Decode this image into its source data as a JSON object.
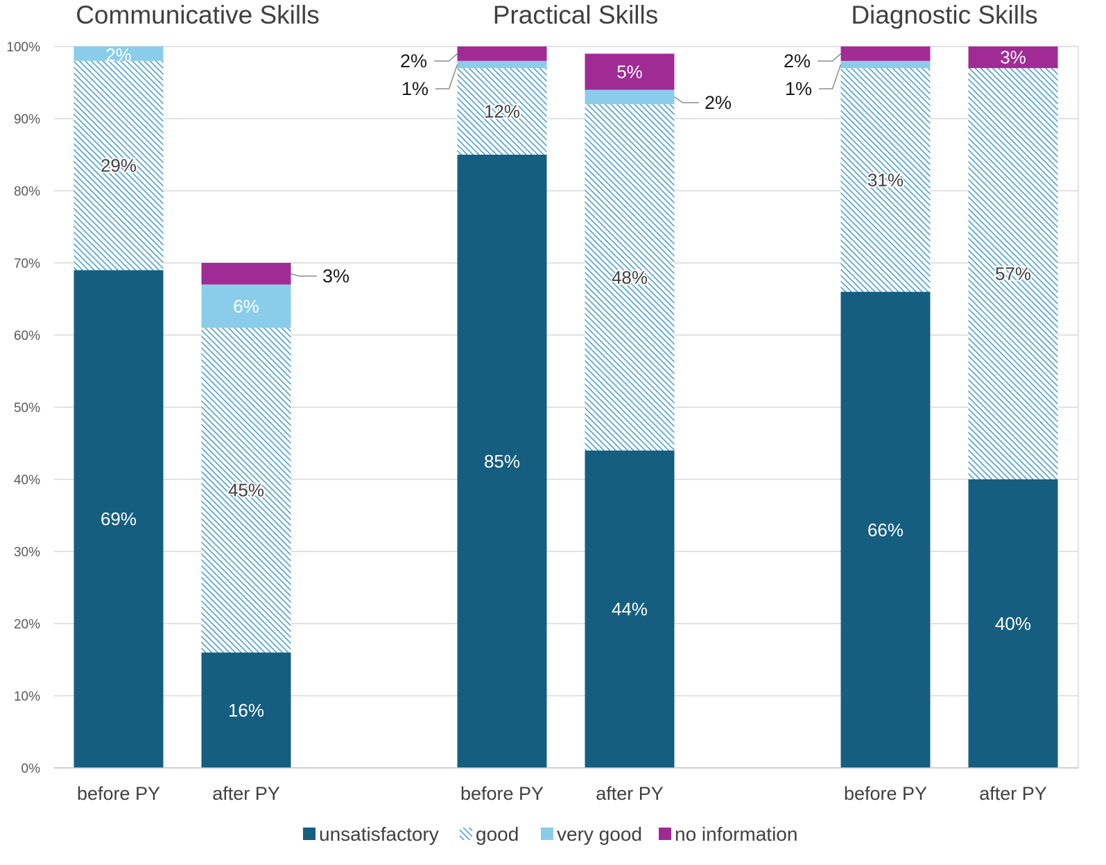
{
  "chart_data": {
    "type": "bar",
    "stacked": true,
    "groups": [
      {
        "title": "Communicative Skills",
        "bars": [
          {
            "category": "before PY",
            "values": {
              "unsatisfactory": 69,
              "good": 29,
              "very_good": 2,
              "no_information": 0
            },
            "labels": {
              "unsatisfactory": "69%",
              "good": "29%",
              "very_good": "2%"
            }
          },
          {
            "category": "after PY",
            "values": {
              "unsatisfactory": 16,
              "good": 45,
              "very_good": 6,
              "no_information": 3
            },
            "labels": {
              "unsatisfactory": "16%",
              "good": "45%",
              "very_good": "6%",
              "no_information": "3%"
            }
          }
        ]
      },
      {
        "title": "Practical Skills",
        "bars": [
          {
            "category": "before PY",
            "values": {
              "unsatisfactory": 85,
              "good": 12,
              "very_good": 1,
              "no_information": 2
            },
            "labels": {
              "unsatisfactory": "85%",
              "good": "12%",
              "very_good": "1%",
              "no_information": "2%"
            }
          },
          {
            "category": "after PY",
            "values": {
              "unsatisfactory": 44,
              "good": 48,
              "very_good": 2,
              "no_information": 5
            },
            "labels": {
              "unsatisfactory": "44%",
              "good": "48%",
              "very_good": "2%",
              "no_information": "5%"
            }
          }
        ]
      },
      {
        "title": "Diagnostic Skills",
        "bars": [
          {
            "category": "before PY",
            "values": {
              "unsatisfactory": 66,
              "good": 31,
              "very_good": 1,
              "no_information": 2
            },
            "labels": {
              "unsatisfactory": "66%",
              "good": "31%",
              "very_good": "1%",
              "no_information": "2%"
            }
          },
          {
            "category": "after PY",
            "values": {
              "unsatisfactory": 40,
              "good": 57,
              "very_good": 0,
              "no_information": 3
            },
            "labels": {
              "unsatisfactory": "40%",
              "good": "57%",
              "no_information": "3%"
            }
          }
        ]
      }
    ],
    "series": [
      {
        "key": "unsatisfactory",
        "name": "unsatisfactory",
        "color": "#155e80",
        "pattern": "solid"
      },
      {
        "key": "good",
        "name": "good",
        "color": "#4a9fd0",
        "pattern": "diagonal-hatch"
      },
      {
        "key": "very_good",
        "name": "very good",
        "color": "#89cdea",
        "pattern": "solid"
      },
      {
        "key": "no_information",
        "name": "no information",
        "color": "#a12b95",
        "pattern": "solid"
      }
    ],
    "y_ticks": [
      "0%",
      "10%",
      "20%",
      "30%",
      "40%",
      "50%",
      "60%",
      "70%",
      "80%",
      "90%",
      "100%"
    ],
    "ylim": [
      0,
      100
    ],
    "grid": true,
    "legend_position": "bottom"
  }
}
